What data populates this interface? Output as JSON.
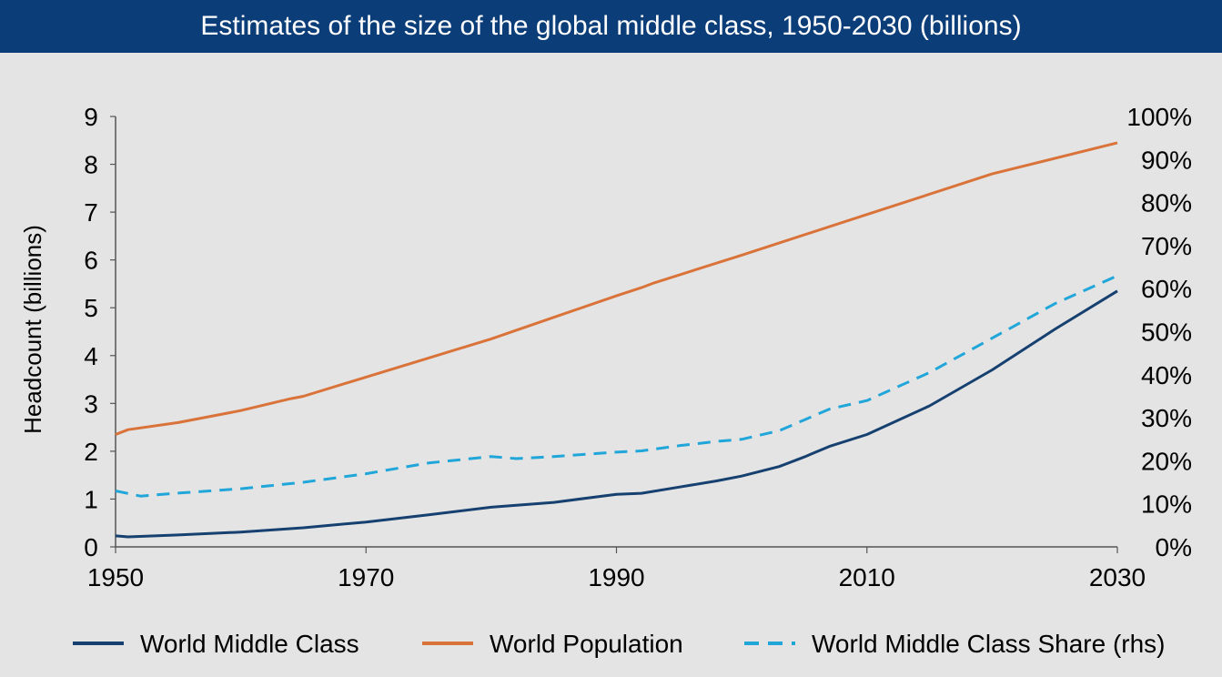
{
  "title": "Estimates of the size of the global middle class, 1950-2030 (billions)",
  "colors": {
    "header_bg": "#0b3d78",
    "background": "#e4e4e4",
    "middle_class": "#16406f",
    "population": "#d9733a",
    "share": "#21a6d9"
  },
  "chart_data": {
    "type": "line",
    "title": "Estimates of the size of the global middle class, 1950-2030 (billions)",
    "ylabel": "Headcount (billions)",
    "xlim": [
      1950,
      2030
    ],
    "ylim": [
      0,
      9
    ],
    "y2lim": [
      0,
      100
    ],
    "x_ticks": [
      "1950",
      "1970",
      "1990",
      "2010",
      "2030"
    ],
    "y_ticks": [
      "0",
      "1",
      "2",
      "3",
      "4",
      "5",
      "6",
      "7",
      "8",
      "9"
    ],
    "y2_ticks": [
      "0%",
      "10%",
      "20%",
      "30%",
      "40%",
      "50%",
      "60%",
      "70%",
      "80%",
      "90%",
      "100%"
    ],
    "grid": false,
    "legend_position": "bottom",
    "series": [
      {
        "name": "World Middle Class",
        "axis": "left",
        "style": "solid",
        "color": "#16406f",
        "x": [
          1950,
          1951,
          1955,
          1960,
          1965,
          1970,
          1975,
          1980,
          1985,
          1990,
          1992,
          1995,
          1998,
          2000,
          2003,
          2005,
          2007,
          2010,
          2015,
          2020,
          2025,
          2030
        ],
        "values": [
          0.23,
          0.21,
          0.25,
          0.31,
          0.4,
          0.52,
          0.67,
          0.83,
          0.93,
          1.1,
          1.12,
          1.25,
          1.38,
          1.48,
          1.68,
          1.88,
          2.1,
          2.35,
          2.95,
          3.7,
          4.55,
          5.35
        ]
      },
      {
        "name": "World Population",
        "axis": "left",
        "style": "solid",
        "color": "#d9733a",
        "x": [
          1950,
          1951,
          1955,
          1960,
          1964,
          1965,
          1970,
          1975,
          1980,
          1985,
          1990,
          1992,
          1993,
          2000,
          2010,
          2020,
          2030
        ],
        "values": [
          2.35,
          2.45,
          2.6,
          2.85,
          3.1,
          3.15,
          3.55,
          3.95,
          4.35,
          4.8,
          5.25,
          5.42,
          5.52,
          6.1,
          6.95,
          7.8,
          8.45
        ]
      },
      {
        "name": "World Middle Class Share (rhs)",
        "axis": "right",
        "style": "dashed",
        "color": "#21a6d9",
        "x": [
          1950,
          1952,
          1955,
          1960,
          1965,
          1970,
          1975,
          1980,
          1982,
          1985,
          1990,
          1992,
          1995,
          1998,
          2000,
          2003,
          2005,
          2007,
          2010,
          2015,
          2020,
          2025,
          2030
        ],
        "values": [
          13,
          11.8,
          12.5,
          13.5,
          15,
          17,
          19.5,
          21,
          20.5,
          21,
          22,
          22.3,
          23.5,
          24.5,
          25,
          27,
          29.5,
          32,
          34,
          40.5,
          48.5,
          56.5,
          63
        ]
      }
    ]
  }
}
